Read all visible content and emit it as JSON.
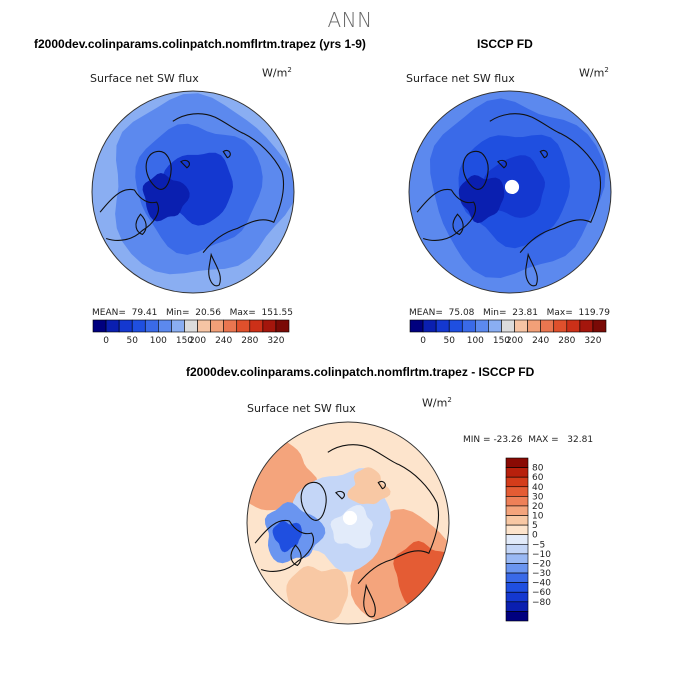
{
  "figure": {
    "title": "ANN"
  },
  "colors": {
    "abs_scale": [
      "#00007f",
      "#0a1fb0",
      "#1438d0",
      "#1f4fe0",
      "#3a6ae8",
      "#5c89ee",
      "#8aaef2",
      "#dcdcdc",
      "#f6c4a4",
      "#f2a078",
      "#ea7650",
      "#e0502c",
      "#cc3018",
      "#a4160c",
      "#7a0a06"
    ],
    "diff_scale": [
      "#00007f",
      "#0a1fb0",
      "#1438d0",
      "#1f4fe0",
      "#3a6ae8",
      "#6a95f0",
      "#9ab9f4",
      "#c4d6f7",
      "#e2ebfa",
      "#fde4cc",
      "#f8c8a4",
      "#f4a47c",
      "#ee8058",
      "#e45c34",
      "#d43c1a",
      "#b8200c",
      "#8a0a04"
    ],
    "coastline": "#111111"
  },
  "chart_data": [
    {
      "type": "heatmap",
      "projection": "north-polar-stereographic",
      "title": "f2000dev.colinparams.colinpatch.nomflrtm.trapez (yrs 1-9)",
      "variable": "Surface net SW flux",
      "units": "W/m",
      "units_exp": "2",
      "stats": {
        "mean_label": "MEAN=",
        "mean": "79.41",
        "min_label": "Min=",
        "min": "20.56",
        "max_label": "Max=",
        "max": "151.55"
      },
      "colorbar_ticks": [
        "0",
        "50",
        "100",
        "150",
        "200",
        "240",
        "280",
        "320"
      ],
      "field_levels": [
        {
          "level": 6,
          "ring": [
            1.0,
            0.88
          ]
        },
        {
          "level": 5,
          "ring": [
            0.88,
            0.62
          ]
        },
        {
          "level": 4,
          "ring": [
            0.62,
            0.35
          ]
        },
        {
          "level": 2,
          "ring": [
            0.35,
            0.0
          ]
        }
      ]
    },
    {
      "type": "heatmap",
      "projection": "north-polar-stereographic",
      "title": "ISCCP FD",
      "variable": "Surface net SW flux",
      "units": "W/m",
      "units_exp": "2",
      "stats": {
        "mean_label": "MEAN=",
        "mean": "75.08",
        "min_label": "Min=",
        "min": "23.81",
        "max_label": "Max=",
        "max": "119.79"
      },
      "colorbar_ticks": [
        "0",
        "50",
        "100",
        "150",
        "200",
        "240",
        "280",
        "320"
      ],
      "field_levels": [
        {
          "level": 5,
          "ring": [
            1.0,
            0.85
          ]
        },
        {
          "level": 4,
          "ring": [
            0.85,
            0.55
          ]
        },
        {
          "level": 3,
          "ring": [
            0.55,
            0.3
          ]
        },
        {
          "level": 2,
          "ring": [
            0.3,
            0.0
          ]
        }
      ]
    },
    {
      "type": "heatmap",
      "projection": "north-polar-stereographic",
      "title": "f2000dev.colinparams.colinpatch.nomflrtm.trapez - ISCCP FD",
      "variable": "Surface net SW flux",
      "units": "W/m",
      "units_exp": "2",
      "stats": {
        "min_label": "MIN =",
        "min": "-23.26",
        "max_label": "MAX =",
        "max": "32.81"
      },
      "colorbar_ticks": [
        "80",
        "60",
        "40",
        "30",
        "20",
        "10",
        "5",
        "0",
        "−5",
        "−10",
        "−20",
        "−30",
        "−40",
        "−60",
        "−80"
      ]
    }
  ]
}
